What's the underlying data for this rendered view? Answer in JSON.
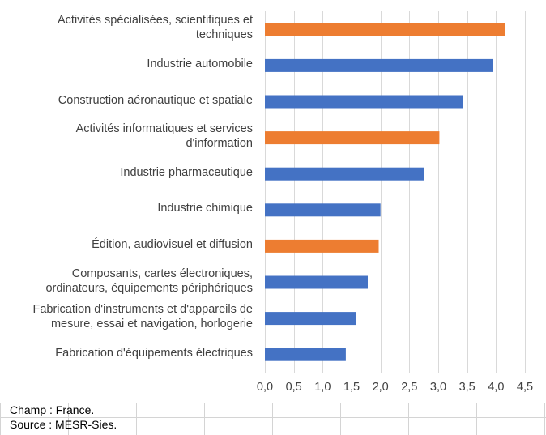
{
  "chart_data": {
    "type": "bar",
    "orientation": "horizontal",
    "categories": [
      "Activités spécialisées, scientifiques et\ntechniques",
      "Industrie automobile",
      "Construction aéronautique et spatiale",
      "Activités informatiques et services\nd'information",
      "Industrie pharmaceutique",
      "Industrie chimique",
      "Édition, audiovisuel et diffusion",
      "Composants, cartes électroniques,\nordinateurs, équipements périphériques",
      "Fabrication d'instruments et d'appareils de\nmesure, essai et navigation, horlogerie",
      "Fabrication d'équipements électriques"
    ],
    "values": [
      4.16,
      3.95,
      3.43,
      3.02,
      2.76,
      2.0,
      1.97,
      1.78,
      1.58,
      1.4
    ],
    "bar_colors": [
      "#ED7D31",
      "#4472C4",
      "#4472C4",
      "#ED7D31",
      "#4472C4",
      "#4472C4",
      "#ED7D31",
      "#4472C4",
      "#4472C4",
      "#4472C4"
    ],
    "xlim": [
      0,
      4.5
    ],
    "x_ticks": [
      "0,0",
      "0,5",
      "1,0",
      "1,5",
      "2,0",
      "2,5",
      "3,0",
      "3,5",
      "4,0",
      "4,5"
    ],
    "grid": true,
    "legend": "none"
  },
  "notes": {
    "scope": "Champ : France.",
    "source": "Source : MESR-Sies."
  }
}
